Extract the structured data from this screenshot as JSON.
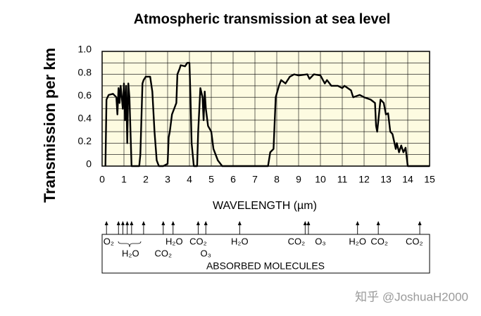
{
  "chart_data": {
    "type": "line",
    "title": "Atmospheric transmission at sea level",
    "x_label": "WAVELENGTH (µm)",
    "y_label": "Transmission per km",
    "x": [
      0.15,
      0.2,
      0.3,
      0.5,
      0.65,
      0.7,
      0.75,
      0.8,
      0.85,
      0.9,
      0.95,
      1.0,
      1.05,
      1.1,
      1.15,
      1.2,
      1.25,
      1.3,
      1.35,
      1.4,
      1.7,
      1.75,
      1.85,
      1.9,
      2.0,
      2.2,
      2.3,
      2.4,
      2.5,
      2.6,
      2.8,
      3.0,
      3.05,
      3.1,
      3.2,
      3.3,
      3.4,
      3.45,
      3.55,
      3.6,
      3.8,
      3.9,
      4.0,
      4.05,
      4.1,
      4.2,
      4.35,
      4.4,
      4.5,
      4.6,
      4.65,
      4.7,
      4.75,
      4.85,
      5.0,
      5.1,
      5.3,
      5.5,
      7.6,
      7.7,
      7.85,
      7.95,
      8.1,
      8.2,
      8.4,
      8.6,
      8.8,
      9.0,
      9.4,
      9.5,
      9.7,
      10.0,
      10.2,
      10.3,
      10.5,
      10.8,
      11.0,
      11.1,
      11.4,
      11.5,
      11.8,
      12.0,
      12.3,
      12.5,
      12.55,
      12.6,
      12.75,
      12.9,
      13.0,
      13.1,
      13.2,
      13.3,
      13.45,
      13.5,
      13.6,
      13.7,
      13.8,
      13.9,
      14.0,
      15.0
    ],
    "values": [
      0,
      0.58,
      0.62,
      0.63,
      0.6,
      0.45,
      0.68,
      0.55,
      0.7,
      0.6,
      0.5,
      0.72,
      0.4,
      0.7,
      0.2,
      0.72,
      0.6,
      0.3,
      0,
      0,
      0,
      0.1,
      0.72,
      0.75,
      0.78,
      0.78,
      0.65,
      0.3,
      0.05,
      0,
      0,
      0.02,
      0.25,
      0.3,
      0.45,
      0.5,
      0.55,
      0.8,
      0.85,
      0.88,
      0.87,
      0.9,
      0.9,
      0.6,
      0.2,
      0,
      0,
      0.3,
      0.68,
      0.6,
      0.4,
      0.65,
      0.5,
      0.35,
      0.3,
      0.15,
      0.05,
      0,
      0,
      0.12,
      0.15,
      0.6,
      0.7,
      0.75,
      0.72,
      0.78,
      0.8,
      0.79,
      0.8,
      0.76,
      0.8,
      0.79,
      0.72,
      0.75,
      0.7,
      0.7,
      0.68,
      0.7,
      0.66,
      0.6,
      0.62,
      0.6,
      0.58,
      0.55,
      0.35,
      0.3,
      0.58,
      0.55,
      0.45,
      0.46,
      0.3,
      0.28,
      0.15,
      0.2,
      0.12,
      0.18,
      0.12,
      0.16,
      0,
      0
    ],
    "color": "#000000",
    "xlim": [
      0,
      15
    ],
    "xticks": [
      0,
      1,
      2,
      3,
      4,
      5,
      6,
      7,
      8,
      9,
      10,
      11,
      12,
      13,
      14,
      15
    ],
    "ylim": [
      0,
      1
    ],
    "yticks": [
      0,
      0.2,
      0.4,
      0.6,
      0.8,
      {
        "value": 1,
        "label": "1.0"
      }
    ],
    "y_minor_ticks": [
      0.1,
      0.3,
      0.5,
      0.7,
      0.9
    ],
    "grid": true
  },
  "absorbed_molecules": {
    "label": "ABSORBED MOLECULES",
    "arrows": [
      0.2,
      0.75,
      0.95,
      1.15,
      1.35,
      1.9,
      2.8,
      3.25,
      4.4,
      4.75,
      6.3,
      9.3,
      9.45,
      11.7,
      12.65,
      14.55
    ],
    "names": [
      "O₂",
      "H₂O",
      "CO₂",
      "H₂O",
      "CO₂",
      "O₃",
      "H₂O",
      "CO₂",
      "O₃",
      "H₂O",
      "CO₂",
      "CO₂"
    ]
  },
  "watermark": "知乎 @JoshuaH2000"
}
